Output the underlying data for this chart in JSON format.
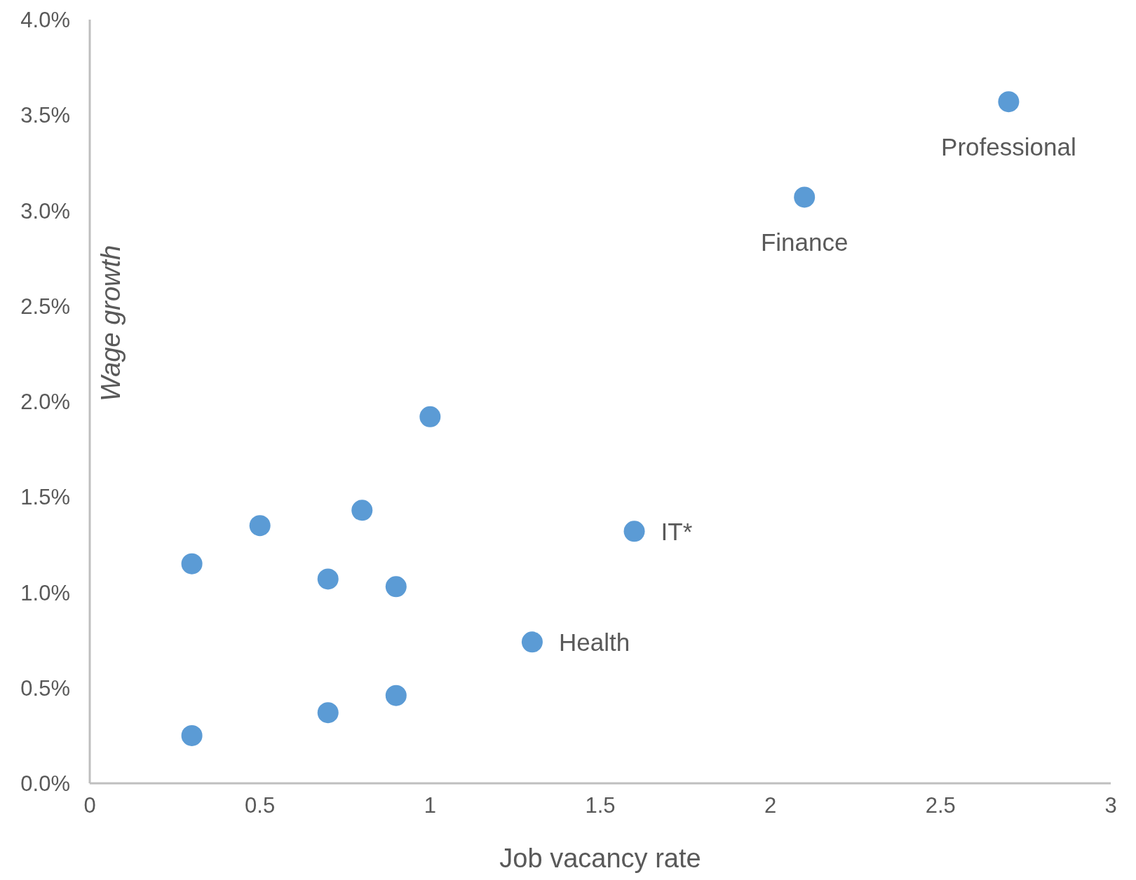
{
  "chart_data": {
    "type": "scatter",
    "xlabel": "Job vacancy rate",
    "ylabel": "Wage growth",
    "x": [
      0.3,
      0.7,
      0.9,
      0.3,
      0.7,
      0.9,
      0.5,
      0.8,
      1.0,
      1.3,
      1.6,
      2.1,
      2.7
    ],
    "values": [
      0.25,
      0.37,
      0.46,
      1.15,
      1.07,
      1.03,
      1.35,
      1.43,
      1.92,
      0.74,
      1.32,
      3.07,
      3.57
    ],
    "color": "#5b9bd5",
    "marker": "circle",
    "grid": false,
    "legend": false,
    "xlim": [
      0,
      3
    ],
    "xticks": [
      0,
      0.5,
      1,
      1.5,
      2,
      2.5,
      3
    ],
    "ylim": [
      0,
      4
    ],
    "yticks": [
      {
        "value": 0,
        "label": "0.0%"
      },
      {
        "value": 0.5,
        "label": "0.5%"
      },
      {
        "value": 1,
        "label": "1.0%"
      },
      {
        "value": 1.5,
        "label": "1.5%"
      },
      {
        "value": 2,
        "label": "2.0%"
      },
      {
        "value": 2.5,
        "label": "2.5%"
      },
      {
        "value": 3,
        "label": "3.0%"
      },
      {
        "value": 3.5,
        "label": "3.5%"
      },
      {
        "value": 4,
        "label": "4.0%"
      }
    ],
    "annotations": [
      {
        "text": "Health",
        "x": 1.3,
        "y": 0.74
      },
      {
        "text": "IT*",
        "x": 1.6,
        "y": 1.32
      },
      {
        "text": "Finance",
        "x": 2.1,
        "y": 3.07
      },
      {
        "text": "Professional",
        "x": 2.7,
        "y": 3.57
      }
    ]
  }
}
